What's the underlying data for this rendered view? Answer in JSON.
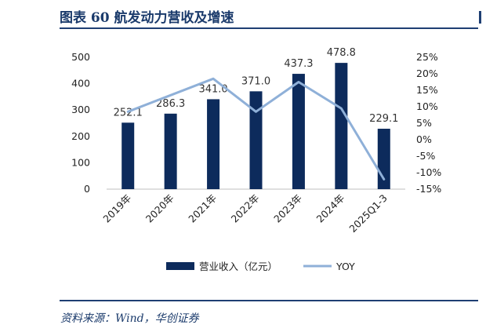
{
  "figure": {
    "title": "图表 60   航发动力营收及增速",
    "source": "资料来源：Wind，华创证券"
  },
  "colors": {
    "bar": "#0d2b5c",
    "line": "#8fb0d8",
    "rule": "#1f3f73"
  },
  "chart_data": {
    "type": "bar",
    "categories": [
      "2019年",
      "2020年",
      "2021年",
      "2022年",
      "2023年",
      "2024年",
      "2025Q1-3"
    ],
    "series": [
      {
        "name": "营业收入（亿元）",
        "type": "bar",
        "axis": "left",
        "values": [
          252.1,
          286.3,
          341.0,
          371.0,
          437.3,
          478.8,
          229.1
        ],
        "labels": [
          "252.1",
          "286.3",
          "341.0",
          "371.0",
          "437.3",
          "478.8",
          "229.1"
        ]
      },
      {
        "name": "YOY",
        "type": "line",
        "axis": "right",
        "values": [
          8.5,
          13.5,
          18.5,
          8.5,
          17.5,
          9.5,
          -12.0
        ]
      }
    ],
    "left_axis": {
      "min": 0,
      "max": 500,
      "ticks": [
        0,
        100,
        200,
        300,
        400,
        500
      ],
      "tick_labels": [
        "0",
        "100",
        "200",
        "300",
        "400",
        "500"
      ]
    },
    "right_axis": {
      "min": -15,
      "max": 25,
      "ticks": [
        -15,
        -10,
        -5,
        0,
        5,
        10,
        15,
        20,
        25
      ],
      "tick_labels": [
        "-15%",
        "-10%",
        "-5%",
        "0%",
        "5%",
        "10%",
        "15%",
        "20%",
        "25%"
      ]
    },
    "legend": "bottom",
    "grid": false
  }
}
